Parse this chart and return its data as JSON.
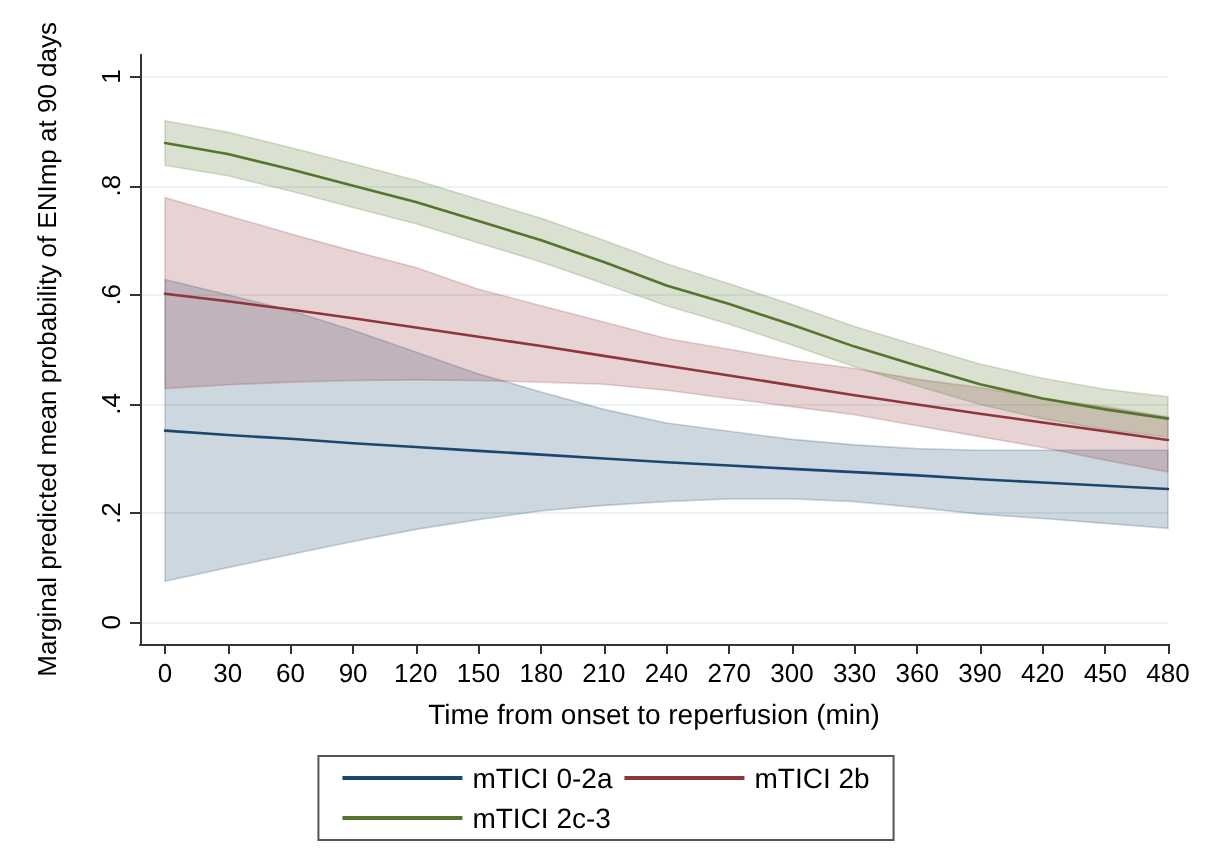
{
  "chart_data": {
    "type": "line",
    "xlabel": "Time from onset to reperfusion (min)",
    "ylabel": "Marginal predicted mean probability of ENImp at 90 days",
    "x": [
      0,
      30,
      60,
      90,
      120,
      150,
      180,
      210,
      240,
      270,
      300,
      330,
      360,
      390,
      420,
      450,
      480
    ],
    "series": [
      {
        "name": "mTICI 0-2a",
        "color": "#1a476f",
        "values": [
          0.351,
          0.343,
          0.336,
          0.328,
          0.321,
          0.314,
          0.307,
          0.3,
          0.293,
          0.287,
          0.281,
          0.275,
          0.269,
          0.262,
          0.256,
          0.25,
          0.244
        ],
        "lower": [
          0.075,
          0.1,
          0.124,
          0.148,
          0.17,
          0.188,
          0.204,
          0.214,
          0.221,
          0.226,
          0.226,
          0.221,
          0.21,
          0.198,
          0.19,
          0.181,
          0.172
        ],
        "upper": [
          0.628,
          0.6,
          0.571,
          0.535,
          0.495,
          0.455,
          0.422,
          0.39,
          0.365,
          0.35,
          0.335,
          0.325,
          0.318,
          0.315,
          0.315,
          0.315,
          0.315
        ]
      },
      {
        "name": "mTICI 2b",
        "color": "#90353b",
        "values": [
          0.602,
          0.588,
          0.573,
          0.557,
          0.54,
          0.523,
          0.506,
          0.488,
          0.47,
          0.452,
          0.434,
          0.416,
          0.399,
          0.382,
          0.366,
          0.35,
          0.334
        ],
        "lower": [
          0.428,
          0.435,
          0.44,
          0.443,
          0.444,
          0.443,
          0.44,
          0.436,
          0.425,
          0.41,
          0.395,
          0.38,
          0.36,
          0.34,
          0.32,
          0.297,
          0.275
        ],
        "upper": [
          0.778,
          0.745,
          0.712,
          0.68,
          0.65,
          0.61,
          0.58,
          0.55,
          0.52,
          0.5,
          0.48,
          0.465,
          0.445,
          0.43,
          0.41,
          0.395,
          0.376
        ]
      },
      {
        "name": "mTICI 2c-3",
        "color": "#55752f",
        "values": [
          0.878,
          0.858,
          0.83,
          0.8,
          0.77,
          0.735,
          0.7,
          0.66,
          0.617,
          0.583,
          0.545,
          0.505,
          0.47,
          0.436,
          0.41,
          0.39,
          0.373
        ],
        "lower": [
          0.837,
          0.818,
          0.79,
          0.76,
          0.73,
          0.695,
          0.66,
          0.62,
          0.58,
          0.546,
          0.508,
          0.468,
          0.433,
          0.399,
          0.373,
          0.353,
          0.339
        ],
        "upper": [
          0.919,
          0.898,
          0.87,
          0.84,
          0.81,
          0.775,
          0.74,
          0.7,
          0.657,
          0.62,
          0.582,
          0.542,
          0.507,
          0.473,
          0.447,
          0.427,
          0.413
        ]
      }
    ],
    "xlim": [
      -12,
      480
    ],
    "xticks": [
      0,
      30,
      60,
      90,
      120,
      150,
      180,
      210,
      240,
      270,
      300,
      330,
      360,
      390,
      420,
      450,
      480
    ],
    "ylim": [
      -0.04,
      1.04
    ],
    "yticks": [
      {
        "value": 0,
        "label": "0"
      },
      {
        "value": 0.2,
        "label": ".2"
      },
      {
        "value": 0.4,
        "label": ".4"
      },
      {
        "value": 0.6,
        "label": ".6"
      },
      {
        "value": 0.8,
        "label": ".8"
      },
      {
        "value": 1,
        "label": "1"
      }
    ],
    "grid": "y",
    "legend": "bottom",
    "marker": "none",
    "line_style": "solid"
  }
}
